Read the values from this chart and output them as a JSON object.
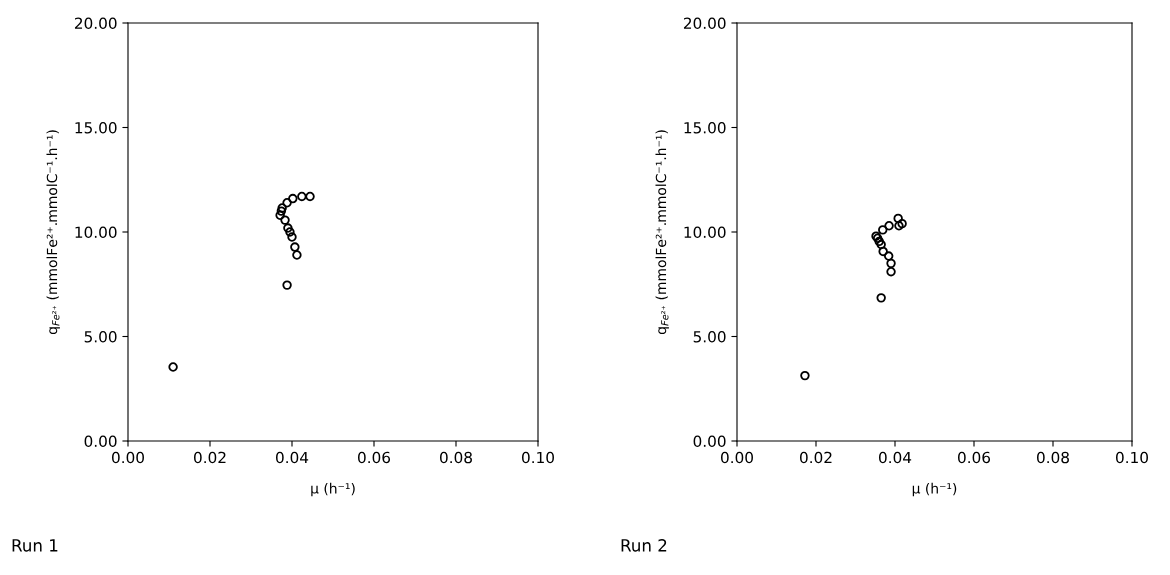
{
  "chart_data": [
    {
      "type": "scatter",
      "title": "Run 1",
      "xlabel": "μ (h⁻¹)",
      "ylabel": "q$_{Fe²⁺}$ (mmolFe²⁺.mmolC⁻¹.h⁻¹)",
      "marker": "circle",
      "grid": false,
      "legend": false,
      "x": [
        0.011,
        0.0388,
        0.0412,
        0.0407,
        0.04,
        0.0395,
        0.039,
        0.0383,
        0.0371,
        0.0374,
        0.0376,
        0.0388,
        0.0402,
        0.0424,
        0.0444
      ],
      "values": [
        3.54,
        7.46,
        8.9,
        9.28,
        9.76,
        10.0,
        10.19,
        10.57,
        10.8,
        11.0,
        11.15,
        11.4,
        11.6,
        11.7,
        11.7
      ],
      "color": "#000000",
      "xlim": [
        0,
        0.1
      ],
      "ylim": [
        0,
        20
      ],
      "xticks": [
        {
          "value": 0,
          "label": "0.00"
        },
        {
          "value": 0.02,
          "label": "0.02"
        },
        {
          "value": 0.04,
          "label": "0.04"
        },
        {
          "value": 0.06,
          "label": "0.06"
        },
        {
          "value": 0.08,
          "label": "0.08"
        },
        {
          "value": 0.1,
          "label": "0.10"
        }
      ],
      "yticks": [
        {
          "value": 0,
          "label": "0.00"
        },
        {
          "value": 5,
          "label": "5.00"
        },
        {
          "value": 10,
          "label": "10.00"
        },
        {
          "value": 15,
          "label": "15.00"
        },
        {
          "value": 20,
          "label": "20.00"
        }
      ]
    },
    {
      "type": "scatter",
      "title": "Run 2",
      "xlabel": "μ (h⁻¹)",
      "ylabel": "q$_{Fe²⁺}$ (mmolFe²⁺.mmolC⁻¹.h⁻¹)",
      "marker": "circle",
      "grid": false,
      "legend": false,
      "x": [
        0.0172,
        0.0365,
        0.039,
        0.039,
        0.0384,
        0.037,
        0.0365,
        0.036,
        0.0356,
        0.0352,
        0.0369,
        0.0385,
        0.041,
        0.0418,
        0.0408
      ],
      "values": [
        3.13,
        6.85,
        8.1,
        8.5,
        8.85,
        9.07,
        9.4,
        9.55,
        9.7,
        9.8,
        10.1,
        10.3,
        10.3,
        10.4,
        10.65
      ],
      "color": "#000000",
      "xlim": [
        0,
        0.1
      ],
      "ylim": [
        0,
        20
      ],
      "xticks": [
        {
          "value": 0,
          "label": "0.00"
        },
        {
          "value": 0.02,
          "label": "0.02"
        },
        {
          "value": 0.04,
          "label": "0.04"
        },
        {
          "value": 0.06,
          "label": "0.06"
        },
        {
          "value": 0.08,
          "label": "0.08"
        },
        {
          "value": 0.1,
          "label": "0.10"
        }
      ],
      "yticks": [
        {
          "value": 0,
          "label": "0.00"
        },
        {
          "value": 5,
          "label": "5.00"
        },
        {
          "value": 10,
          "label": "10.00"
        },
        {
          "value": 15,
          "label": "15.00"
        },
        {
          "value": 20,
          "label": "20.00"
        }
      ]
    }
  ]
}
